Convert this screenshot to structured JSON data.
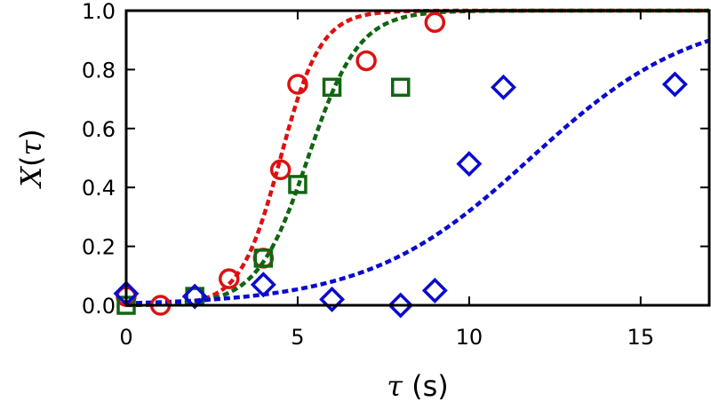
{
  "chart_data": {
    "type": "scatter",
    "xlabel": {
      "symbol": "τ",
      "unit": " (s)"
    },
    "ylabel": {
      "symbol": "X",
      "open": "(",
      "arg": "τ",
      "close": ")"
    },
    "xlim": [
      0,
      17
    ],
    "ylim": [
      0,
      1.0
    ],
    "xticks": [
      0,
      5,
      10,
      15
    ],
    "yticks": [
      0.0,
      0.2,
      0.4,
      0.6,
      0.8,
      1.0
    ],
    "xtick_labels": [
      "0",
      "5",
      "10",
      "15"
    ],
    "ytick_labels": [
      "0.0",
      "0.2",
      "0.4",
      "0.6",
      "0.8",
      "1.0"
    ],
    "grid": false,
    "series": [
      {
        "marker": "circle",
        "color": "#dd1111",
        "points": [
          [
            0,
            0.03
          ],
          [
            1,
            0.0
          ],
          [
            3,
            0.09
          ],
          [
            4,
            0.16
          ],
          [
            4.5,
            0.46
          ],
          [
            5,
            0.75
          ],
          [
            7,
            0.83
          ],
          [
            9,
            0.96
          ]
        ],
        "fit": {
          "style": "dashed",
          "k": 1.7,
          "x0": 4.5
        }
      },
      {
        "marker": "square",
        "color": "#116611",
        "points": [
          [
            0,
            0.0
          ],
          [
            2,
            0.03
          ],
          [
            4,
            0.16
          ],
          [
            5,
            0.41
          ],
          [
            6,
            0.74
          ],
          [
            8,
            0.74
          ]
        ],
        "fit": {
          "style": "dashed",
          "k": 1.35,
          "x0": 5.3
        }
      },
      {
        "marker": "diamond",
        "color": "#0a0ad0",
        "points": [
          [
            0,
            0.04
          ],
          [
            2,
            0.03
          ],
          [
            4,
            0.07
          ],
          [
            6,
            0.02
          ],
          [
            8,
            0.0
          ],
          [
            9,
            0.05
          ],
          [
            10,
            0.48
          ],
          [
            11,
            0.74
          ],
          [
            16,
            0.75
          ]
        ],
        "fit": {
          "style": "dashed",
          "k": 0.42,
          "x0": 11.8
        }
      }
    ]
  }
}
